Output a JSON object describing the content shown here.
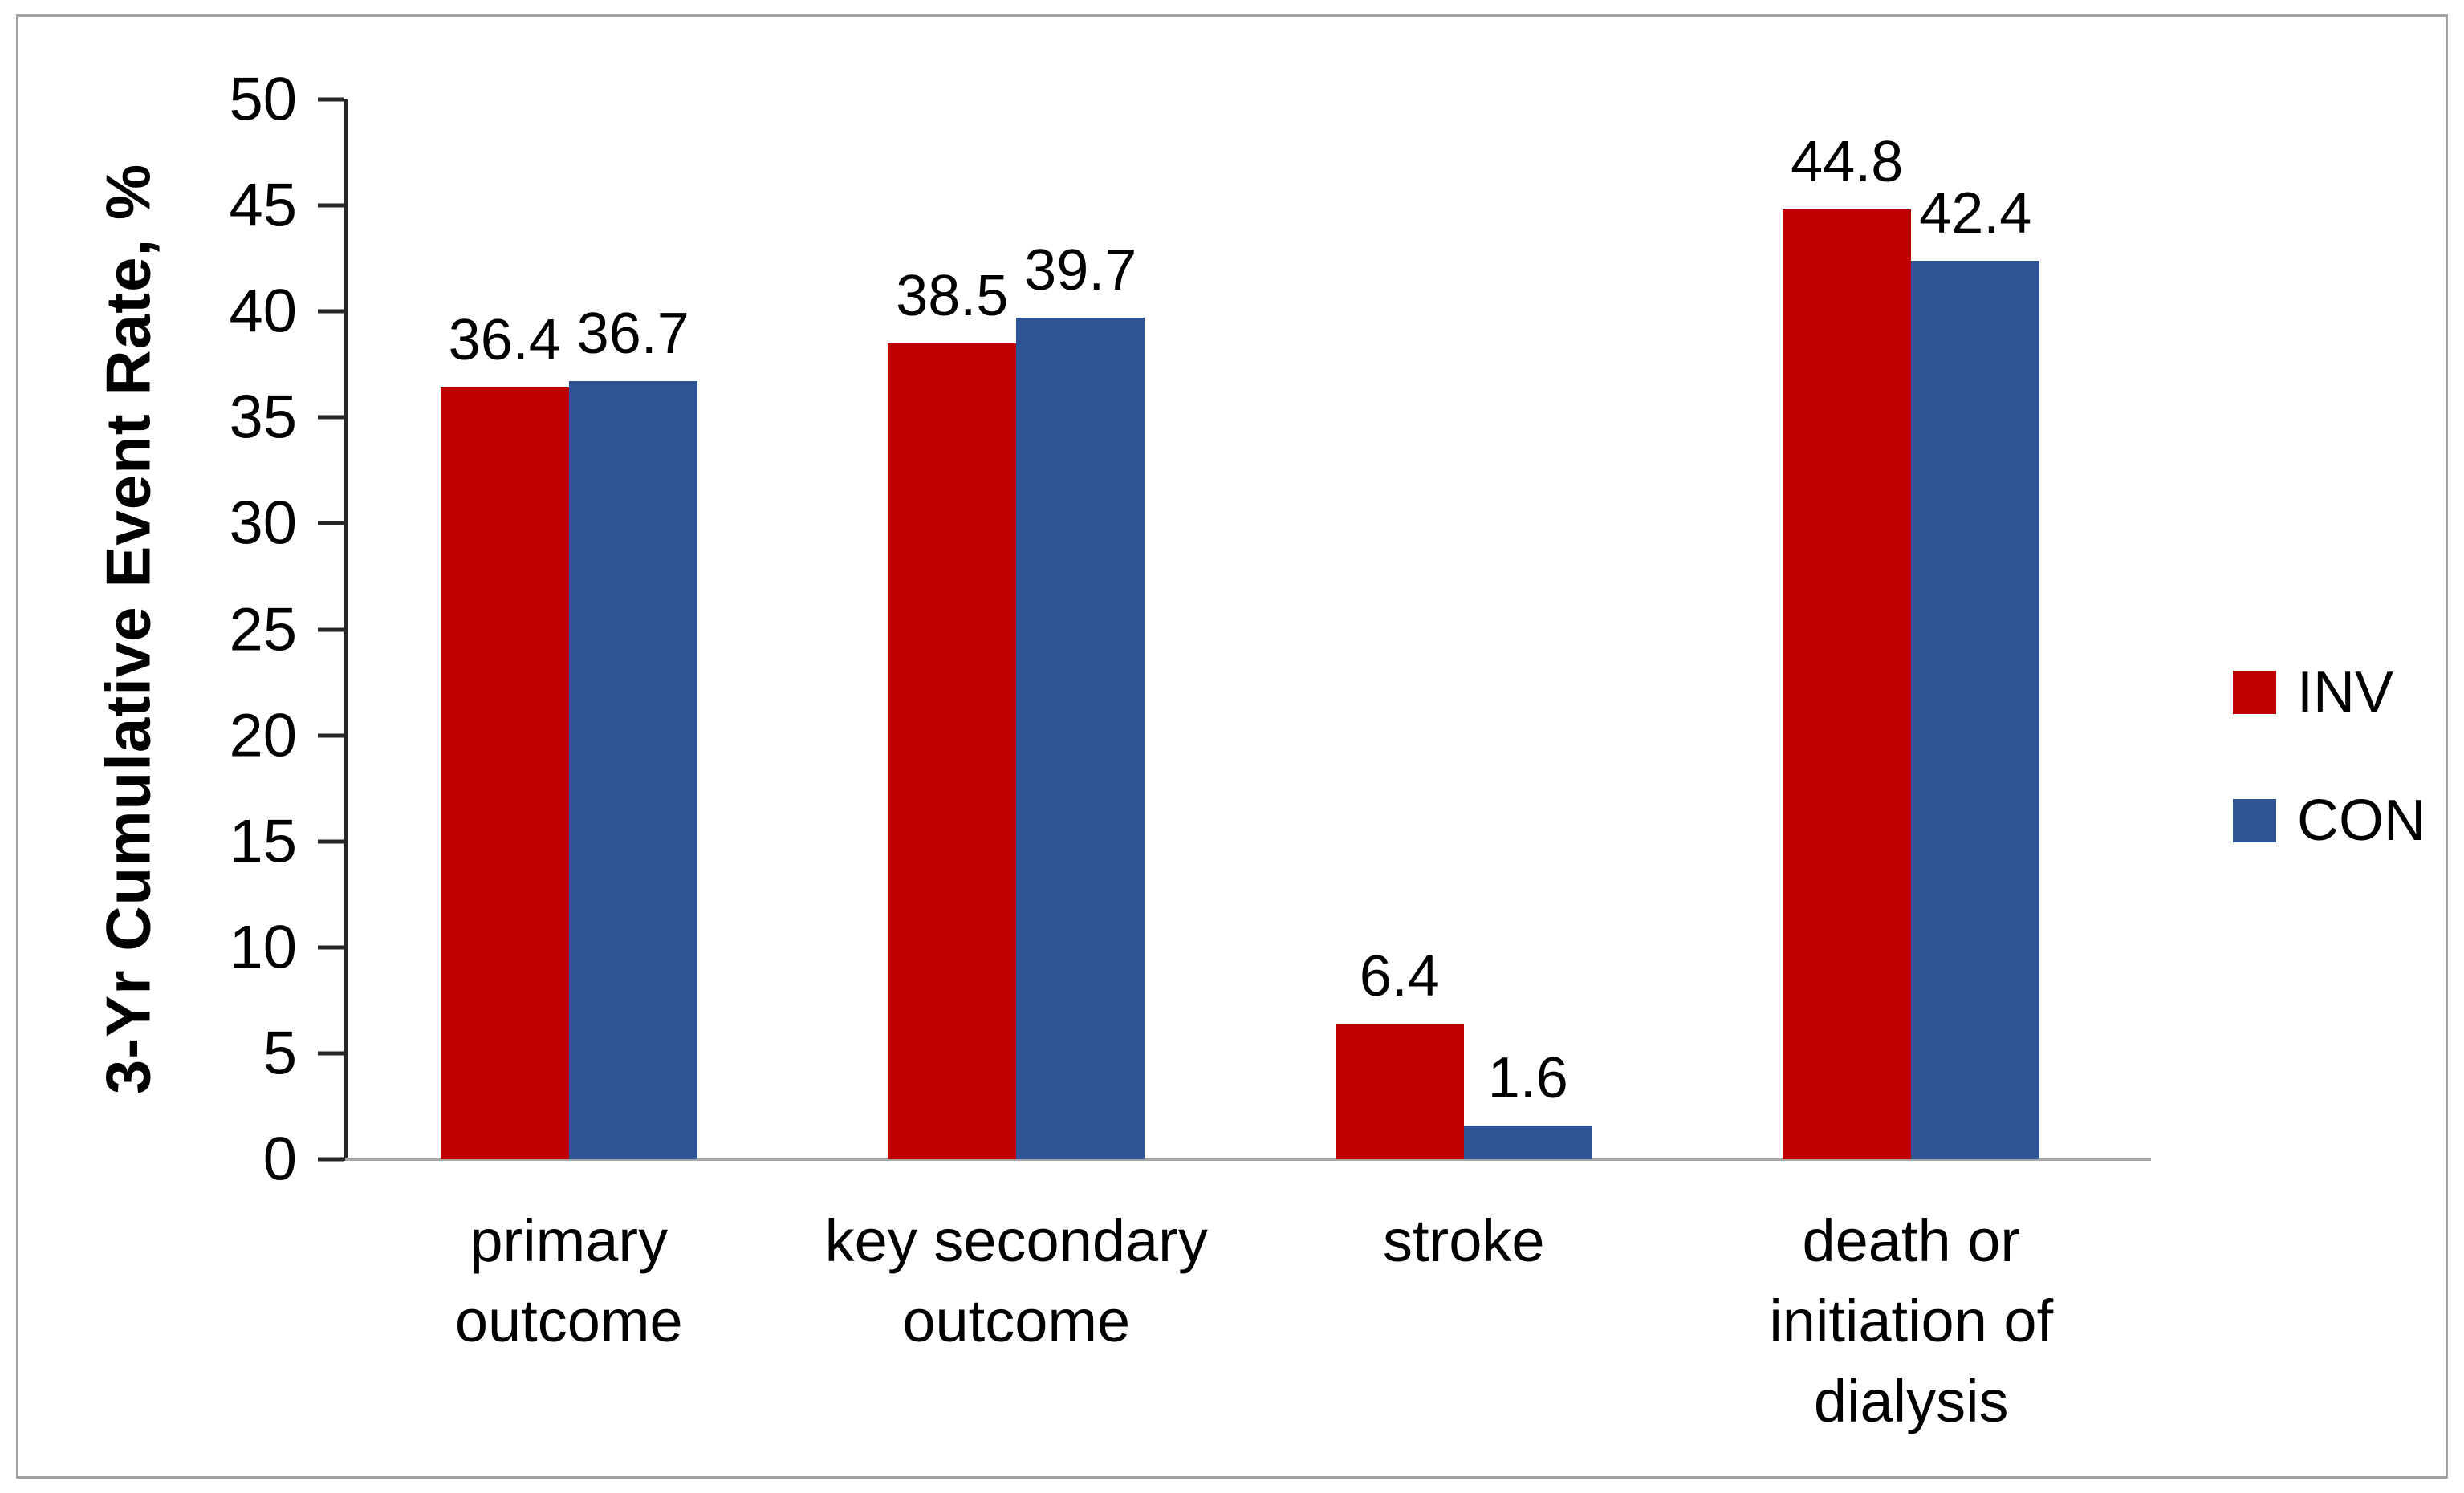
{
  "chart_data": {
    "type": "bar",
    "title": "",
    "xlabel": "",
    "ylabel": "3-Yr Cumulative Event Rate, %",
    "ylim": [
      0,
      50
    ],
    "ytick_step": 5,
    "grid": false,
    "data_labels": true,
    "legend_position": "right",
    "categories": [
      "primary\noutcome",
      "key secondary\noutcome",
      "stroke",
      "death or\ninitiation of\ndialysis"
    ],
    "series": [
      {
        "name": "INV",
        "color": "#c00000",
        "values": [
          36.4,
          38.5,
          6.4,
          44.8
        ]
      },
      {
        "name": "CON",
        "color": "#2f5597",
        "values": [
          36.7,
          39.7,
          1.6,
          42.4
        ]
      }
    ]
  },
  "colors": {
    "frame_border": "#a3a3a3",
    "y_axis": "#262626",
    "x_axis": "#a6a6a6",
    "background": "#ffffff",
    "text": "#000000"
  }
}
